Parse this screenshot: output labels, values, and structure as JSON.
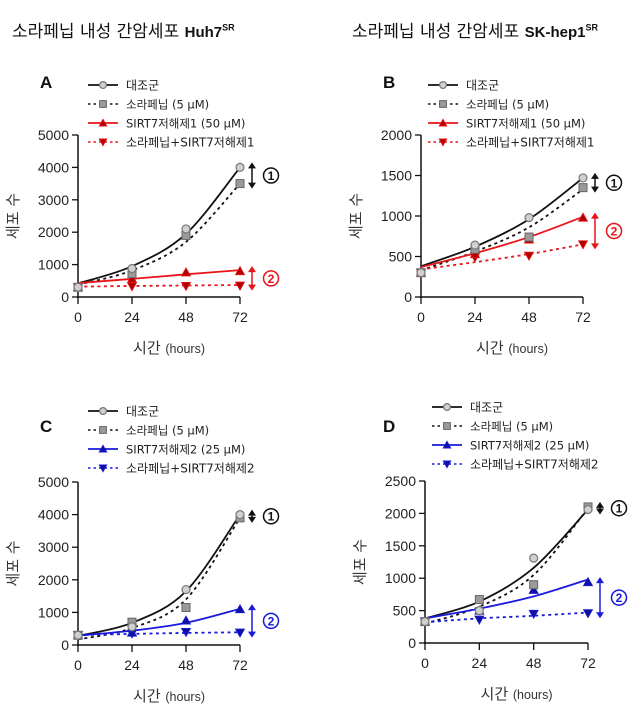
{
  "titles": {
    "left": {
      "prefix": "소라페닙 내성 간암세포 ",
      "cell": "Huh7",
      "sup": "SR"
    },
    "right": {
      "prefix": "소라페닙 내성 간암세포 ",
      "cell": "SK-hep1",
      "sup": "SR"
    }
  },
  "colors": {
    "black": "#111111",
    "gray_marker": "#999999",
    "red": "#e8141a",
    "blue": "#1a1adc",
    "darkred": "#b00000"
  },
  "chart_data": [
    {
      "panel": "A",
      "type": "line",
      "cell_line": "Huh7SR",
      "xlabel_kr": "시간",
      "xlabel_unit": "(hours)",
      "ylabel": "세포 수",
      "x": [
        0,
        24,
        48,
        72
      ],
      "xticks": [
        "0",
        "24",
        "48",
        "72"
      ],
      "ylim": [
        0,
        5000
      ],
      "yticks": [
        "0",
        "1000",
        "2000",
        "3000",
        "4000",
        "5000"
      ],
      "accent": "red",
      "series": [
        {
          "name": "대조군",
          "style": "solid",
          "color": "black",
          "marker": "circle",
          "values": [
            300,
            880,
            2100,
            4000
          ],
          "fit": [
            420,
            950,
            1950,
            4000
          ]
        },
        {
          "name": "소라페닙 (5 μM)",
          "style": "dotted",
          "color": "black",
          "marker": "square",
          "values": [
            300,
            720,
            1900,
            3500
          ],
          "fit": [
            380,
            820,
            1700,
            3500
          ]
        },
        {
          "name": "SIRT7저해제1 (50 μM)",
          "style": "solid",
          "color": "red",
          "marker": "triangle-up",
          "values": [
            300,
            560,
            760,
            800
          ],
          "fit": [
            430,
            560,
            700,
            830
          ]
        },
        {
          "name": "소라페닙+SIRT7저해제1",
          "style": "dotted",
          "color": "red",
          "marker": "triangle-down",
          "values": [
            300,
            330,
            340,
            350
          ],
          "fit": [
            320,
            340,
            355,
            370
          ]
        }
      ],
      "annotations": [
        {
          "label": "①",
          "between": [
            "대조군",
            "소라페닙 (5 μM)"
          ],
          "color": "black"
        },
        {
          "label": "②",
          "between": [
            "SIRT7저해제1 (50 μM)",
            "소라페닙+SIRT7저해제1"
          ],
          "color": "red"
        }
      ]
    },
    {
      "panel": "B",
      "type": "line",
      "cell_line": "SK-hep1SR",
      "xlabel_kr": "시간",
      "xlabel_unit": "(hours)",
      "ylabel": "세포 수",
      "x": [
        0,
        24,
        48,
        72
      ],
      "xticks": [
        "0",
        "24",
        "48",
        "72"
      ],
      "ylim": [
        0,
        2000
      ],
      "yticks": [
        "0",
        "500",
        "1000",
        "1500",
        "2000"
      ],
      "accent": "red",
      "series": [
        {
          "name": "대조군",
          "style": "solid",
          "color": "black",
          "marker": "circle",
          "values": [
            300,
            640,
            980,
            1470
          ],
          "fit": [
            380,
            620,
            960,
            1470
          ]
        },
        {
          "name": "소라페닙 (5 μM)",
          "style": "dotted",
          "color": "black",
          "marker": "square",
          "values": [
            300,
            590,
            740,
            1350
          ],
          "fit": [
            330,
            560,
            860,
            1330
          ]
        },
        {
          "name": "SIRT7저해제1 (50 μM)",
          "style": "solid",
          "color": "red",
          "marker": "triangle-up",
          "values": [
            300,
            530,
            710,
            980
          ],
          "fit": [
            370,
            540,
            740,
            990
          ]
        },
        {
          "name": "소라페닙+SIRT7저해제1",
          "style": "dotted",
          "color": "red",
          "marker": "triangle-down",
          "values": [
            300,
            490,
            510,
            650
          ],
          "fit": [
            340,
            430,
            530,
            650
          ]
        }
      ],
      "annotations": [
        {
          "label": "①",
          "between": [
            "대조군",
            "소라페닙 (5 μM)"
          ],
          "color": "black"
        },
        {
          "label": "②",
          "between": [
            "SIRT7저해제1 (50 μM)",
            "소라페닙+SIRT7저해제1"
          ],
          "color": "red"
        }
      ]
    },
    {
      "panel": "C",
      "type": "line",
      "cell_line": "Huh7SR",
      "xlabel_kr": "시간",
      "xlabel_unit": "(hours)",
      "ylabel": "세포 수",
      "x": [
        0,
        24,
        48,
        72
      ],
      "xticks": [
        "0",
        "24",
        "48",
        "72"
      ],
      "ylim": [
        0,
        5000
      ],
      "yticks": [
        "0",
        "1000",
        "2000",
        "3000",
        "4000",
        "5000"
      ],
      "accent": "blue",
      "series": [
        {
          "name": "대조군",
          "style": "solid",
          "color": "black",
          "marker": "circle",
          "values": [
            300,
            560,
            1700,
            4000
          ],
          "fit": [
            280,
            680,
            1650,
            4000
          ]
        },
        {
          "name": "소라페닙 (5 μM)",
          "style": "dotted",
          "color": "black",
          "marker": "square",
          "values": [
            300,
            700,
            1150,
            3900
          ],
          "fit": [
            170,
            520,
            1400,
            3900
          ]
        },
        {
          "name": "SIRT7저해제2 (25 μM)",
          "style": "solid",
          "color": "blue",
          "marker": "triangle-up",
          "values": [
            300,
            380,
            750,
            1100
          ],
          "fit": [
            290,
            440,
            680,
            1110
          ]
        },
        {
          "name": "소라페닙+SIRT7저해제2",
          "style": "dotted",
          "color": "blue",
          "marker": "triangle-down",
          "values": [
            300,
            350,
            400,
            380
          ],
          "fit": [
            300,
            340,
            370,
            390
          ]
        }
      ],
      "annotations": [
        {
          "label": "①",
          "between": [
            "대조군",
            "소라페닙 (5 μM)"
          ],
          "color": "black"
        },
        {
          "label": "②",
          "between": [
            "SIRT7저해제2 (25 μM)",
            "소라페닙+SIRT7저해제2"
          ],
          "color": "blue"
        }
      ]
    },
    {
      "panel": "D",
      "type": "line",
      "cell_line": "SK-hep1SR",
      "xlabel_kr": "시간",
      "xlabel_unit": "(hours)",
      "ylabel": "세포 수",
      "x": [
        0,
        24,
        48,
        72
      ],
      "xticks": [
        "0",
        "24",
        "48",
        "72"
      ],
      "ylim": [
        0,
        2500
      ],
      "yticks": [
        "0",
        "500",
        "1000",
        "1500",
        "2000",
        "2500"
      ],
      "accent": "blue",
      "series": [
        {
          "name": "대조군",
          "style": "solid",
          "color": "black",
          "marker": "circle",
          "values": [
            330,
            500,
            1310,
            2060
          ],
          "fit": [
            380,
            640,
            1160,
            2060
          ]
        },
        {
          "name": "소라페닙 (5 μM)",
          "style": "dotted",
          "color": "black",
          "marker": "square",
          "values": [
            330,
            670,
            900,
            2100
          ],
          "fit": [
            300,
            560,
            1050,
            2080
          ]
        },
        {
          "name": "SIRT7저해제2 (25 μM)",
          "style": "solid",
          "color": "blue",
          "marker": "triangle-up",
          "values": [
            330,
            500,
            820,
            940
          ],
          "fit": [
            380,
            530,
            720,
            980
          ]
        },
        {
          "name": "소라페닙+SIRT7저해제2",
          "style": "dotted",
          "color": "blue",
          "marker": "triangle-down",
          "values": [
            330,
            360,
            450,
            460
          ],
          "fit": [
            320,
            380,
            420,
            470
          ]
        }
      ],
      "annotations": [
        {
          "label": "①",
          "between": [
            "대조군",
            "소라페닙 (5 μM)"
          ],
          "color": "black"
        },
        {
          "label": "②",
          "between": [
            "SIRT7저해제2 (25 μM)",
            "소라페닙+SIRT7저해제2"
          ],
          "color": "blue"
        }
      ]
    }
  ]
}
